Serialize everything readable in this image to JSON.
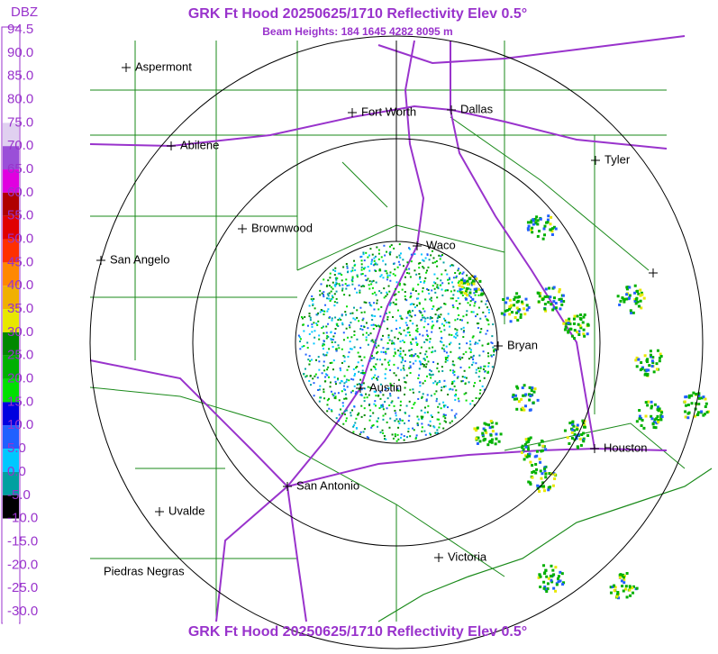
{
  "header": {
    "title": "GRK Ft Hood 20250625/1710 Reflectivity Elev 0.5°",
    "subtitle": "Beam Heights: 184 1645 4282 8095 m",
    "footer": "GRK Ft Hood 20250625/1710 Reflectivity Elev 0.5°"
  },
  "legend": {
    "title": "DBZ",
    "labels": [
      "94.5",
      "90.0",
      "85.0",
      "80.0",
      "75.0",
      "70.0",
      "65.0",
      "60.0",
      "55.0",
      "50.0",
      "45.0",
      "40.0",
      "35.0",
      "30.0",
      "25.0",
      "20.0",
      "15.0",
      "10.0",
      "5.0",
      "0.0",
      "-5.0",
      "-10.0",
      "-15.0",
      "-20.0",
      "-25.0",
      "-30.0"
    ],
    "colors": [
      "#ffffff",
      "#ffffff",
      "#ffffff",
      "#ffffff",
      "#e0d0f0",
      "#9a4fd8",
      "#e000e0",
      "#b00000",
      "#e00000",
      "#ff3000",
      "#ff8800",
      "#f0b000",
      "#e8e800",
      "#008800",
      "#00b000",
      "#00e000",
      "#0000e0",
      "#2060ff",
      "#00c8ff",
      "#00a0a0",
      "#000000",
      "#ffffff",
      "#ffffff",
      "#ffffff",
      "#ffffff",
      "#ffffff"
    ]
  },
  "cities": [
    {
      "label": "Aspermont"
    },
    {
      "label": "Fort Worth"
    },
    {
      "label": "Dallas"
    },
    {
      "label": "Abilene"
    },
    {
      "label": "Tyler"
    },
    {
      "label": "Brownwood"
    },
    {
      "label": "Waco"
    },
    {
      "label": "San Angelo"
    },
    {
      "label": "Bryan"
    },
    {
      "label": "Austin"
    },
    {
      "label": "Houston"
    },
    {
      "label": "San Antonio"
    },
    {
      "label": "Uvalde"
    },
    {
      "label": "Victoria"
    },
    {
      "label": "Piedras Negras"
    }
  ]
}
